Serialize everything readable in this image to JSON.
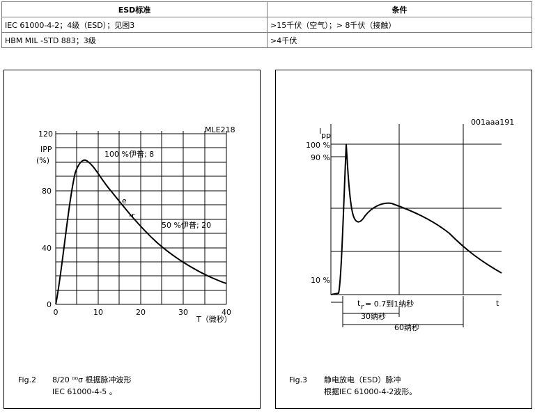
{
  "table": {
    "header": [
      "ESD标准",
      "条件"
    ],
    "rows": [
      [
        "IEC 61000-4-2；4级（ESD）；见图3",
        ">15千伏（空气）；> 8千伏（接触）"
      ],
      [
        "HBM MIL -STD 883；3级",
        ">4千伏"
      ]
    ]
  },
  "figure_left": {
    "id": "MLE218",
    "y_label_1": "IPP",
    "y_label_2": "(%)",
    "y_ticks": [
      "120",
      "80",
      "40",
      "0"
    ],
    "x_ticks": [
      "0",
      "10",
      "20",
      "30",
      "40"
    ],
    "x_label": "T（微秒）",
    "annotation_peak": "100 %伊普; 8",
    "annotation_e": "e",
    "annotation_r": "-r",
    "annotation_half": "50 %伊普; 20",
    "caption_label": "Fig.2",
    "caption_line_1": "8/20 ⁰⁰σ 根据脉冲波形",
    "caption_line_2": "IEC 61000-4-5 。"
  },
  "figure_right": {
    "id": "001aaa191",
    "y_label": "I",
    "y_label_sub": "pp",
    "levels": [
      "100 %",
      "90 %",
      "10 %"
    ],
    "x_label": "t",
    "rise_label": "t",
    "rise_label_sub": "r",
    "rise_value": "= 0.7到1纳秒",
    "span_30": "30纳秒",
    "span_60": "60纳秒",
    "caption_label": "Fig.3",
    "caption_line_1": "静电放电（ESD）脉冲",
    "caption_line_2": "根据IEC 61000-4-2波形。"
  }
}
